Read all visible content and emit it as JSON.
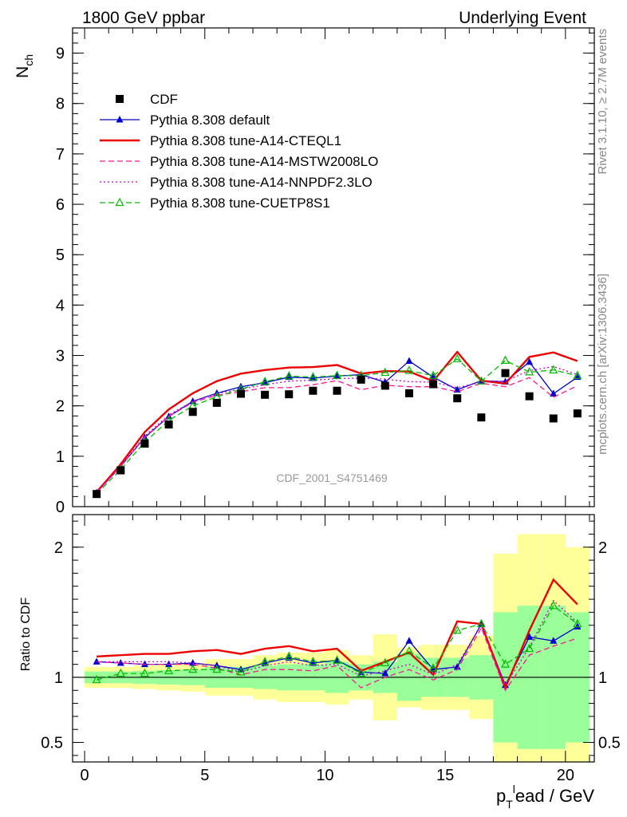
{
  "header": {
    "left": "1800 GeV ppbar",
    "right": "Underlying Event"
  },
  "side_texts": {
    "rivet": "Rivet 3.1.10, ≥ 2.7M events",
    "mcplots": "mcplots.cern.ch [arXiv:1306.3436]"
  },
  "watermark": "CDF_2001_S4751469",
  "chart_data": [
    {
      "type": "line",
      "ylabel_main": "N",
      "ylabel_sub": "ch",
      "xlim": [
        -0.5,
        21.2
      ],
      "ylim": [
        0,
        9.5
      ],
      "yticks": [
        0,
        1,
        2,
        3,
        4,
        5,
        6,
        7,
        8,
        9
      ],
      "x": [
        0.5,
        1.5,
        2.5,
        3.5,
        4.5,
        5.5,
        6.5,
        7.5,
        8.5,
        9.5,
        10.5,
        11.5,
        12.5,
        13.5,
        14.5,
        15.5,
        16.5,
        17.5,
        18.5,
        19.5,
        20.5
      ],
      "data": {
        "name": "CDF",
        "y": [
          0.25,
          0.72,
          1.25,
          1.63,
          1.88,
          2.06,
          2.24,
          2.22,
          2.23,
          2.3,
          2.3,
          2.52,
          2.4,
          2.25,
          2.43,
          2.15,
          1.77,
          2.65,
          2.19,
          1.75,
          1.85
        ]
      },
      "series": [
        {
          "name": "Pythia 8.308 default",
          "color": "#0000cc",
          "style": "solid",
          "marker": "triangle-filled",
          "y": [
            0.28,
            0.8,
            1.37,
            1.79,
            2.09,
            2.25,
            2.38,
            2.46,
            2.57,
            2.55,
            2.59,
            2.62,
            2.47,
            2.89,
            2.57,
            2.32,
            2.5,
            2.48,
            2.87,
            2.24,
            2.57
          ]
        },
        {
          "name": "Pythia 8.308 tune-A14-CTEQL1",
          "color": "#ee0000",
          "style": "solid",
          "marker": "none",
          "y": [
            0.29,
            0.84,
            1.48,
            1.93,
            2.25,
            2.49,
            2.64,
            2.71,
            2.76,
            2.77,
            2.81,
            2.64,
            2.69,
            2.68,
            2.49,
            3.07,
            2.5,
            2.44,
            2.97,
            3.06,
            2.89
          ]
        },
        {
          "name": "Pythia 8.308 tune-A14-MSTW2008LO",
          "color": "#ff1493",
          "style": "dashed",
          "marker": "none",
          "y": [
            0.28,
            0.8,
            1.38,
            1.79,
            2.07,
            2.21,
            2.28,
            2.36,
            2.36,
            2.42,
            2.5,
            2.32,
            2.41,
            2.38,
            2.38,
            2.28,
            2.45,
            2.38,
            2.56,
            2.17,
            2.4
          ]
        },
        {
          "name": "Pythia 8.308 tune-A14-NNPDF2.3LO",
          "color": "#cc00cc",
          "style": "dotted",
          "marker": "none",
          "y": [
            0.28,
            0.81,
            1.4,
            1.82,
            2.09,
            2.24,
            2.33,
            2.42,
            2.49,
            2.51,
            2.54,
            2.55,
            2.53,
            2.48,
            2.47,
            2.36,
            2.47,
            2.49,
            2.7,
            2.78,
            2.62
          ]
        },
        {
          "name": "Pythia 8.308 tune-CUETP8S1",
          "color": "#00bb00",
          "style": "dashed",
          "marker": "triangle-open",
          "y": [
            0.25,
            0.74,
            1.28,
            1.71,
            2.0,
            2.18,
            2.33,
            2.48,
            2.59,
            2.57,
            2.6,
            2.6,
            2.66,
            2.7,
            2.6,
            2.93,
            2.49,
            2.9,
            2.67,
            2.71,
            2.6
          ]
        }
      ]
    },
    {
      "type": "line",
      "ylabel": "Ratio to CDF",
      "xlabel_main": "p",
      "xlabel_sub": "T",
      "xlabel_sup": "l",
      "xlabel_rest": "ead / GeV",
      "ylim": [
        0.35,
        2.25
      ],
      "yticks": [
        0.5,
        1,
        2
      ],
      "xticks": [
        0,
        5,
        10,
        15,
        20
      ],
      "bands": {
        "green_half_width": [
          0.045,
          0.045,
          0.05,
          0.055,
          0.06,
          0.08,
          0.08,
          0.09,
          0.1,
          0.1,
          0.12,
          0.1,
          0.12,
          0.18,
          0.15,
          0.15,
          0.17,
          0.5,
          0.55,
          0.55,
          0.5
        ],
        "yellow_half_width": [
          0.08,
          0.08,
          0.09,
          0.1,
          0.11,
          0.14,
          0.14,
          0.17,
          0.19,
          0.19,
          0.21,
          0.17,
          0.33,
          0.23,
          0.25,
          0.25,
          0.32,
          0.95,
          1.1,
          1.1,
          1.0
        ]
      },
      "series": [
        {
          "name": "Pythia 8.308 default",
          "y": [
            1.12,
            1.11,
            1.1,
            1.1,
            1.11,
            1.09,
            1.06,
            1.11,
            1.15,
            1.11,
            1.13,
            1.04,
            1.03,
            1.28,
            1.06,
            1.08,
            1.41,
            0.94,
            1.31,
            1.28,
            1.39
          ]
        },
        {
          "name": "Pythia 8.308 tune-A14-CTEQL1",
          "y": [
            1.16,
            1.17,
            1.18,
            1.18,
            1.2,
            1.21,
            1.18,
            1.22,
            1.24,
            1.2,
            1.22,
            1.05,
            1.12,
            1.19,
            1.02,
            1.43,
            1.41,
            0.92,
            1.36,
            1.75,
            1.56
          ]
        },
        {
          "name": "Pythia 8.308 tune-A14-MSTW2008LO",
          "y": [
            1.12,
            1.11,
            1.1,
            1.1,
            1.1,
            1.07,
            1.02,
            1.06,
            1.06,
            1.05,
            1.09,
            0.92,
            1.0,
            1.06,
            0.98,
            1.06,
            1.38,
            0.9,
            1.17,
            1.24,
            1.3
          ]
        },
        {
          "name": "Pythia 8.308 tune-A14-NNPDF2.3LO",
          "y": [
            1.12,
            1.12,
            1.12,
            1.12,
            1.11,
            1.09,
            1.04,
            1.09,
            1.12,
            1.09,
            1.1,
            1.01,
            1.05,
            1.1,
            1.02,
            1.1,
            1.4,
            0.94,
            1.23,
            1.59,
            1.42
          ]
        },
        {
          "name": "Pythia 8.308 tune-CUETP8S1",
          "y": [
            0.98,
            1.03,
            1.03,
            1.05,
            1.06,
            1.06,
            1.04,
            1.12,
            1.16,
            1.12,
            1.13,
            1.03,
            1.11,
            1.2,
            1.07,
            1.36,
            1.41,
            1.1,
            1.22,
            1.55,
            1.41
          ]
        }
      ]
    }
  ]
}
